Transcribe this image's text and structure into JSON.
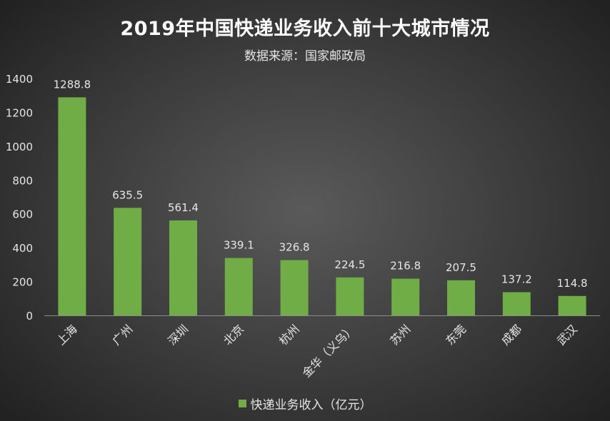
{
  "chart_data": {
    "type": "bar",
    "title": "2019年中国快递业务收入前十大城市情况",
    "subtitle": "数据来源：国家邮政局",
    "categories": [
      "上海",
      "广州",
      "深圳",
      "北京",
      "杭州",
      "金华（义乌）",
      "苏州",
      "东莞",
      "成都",
      "武汉"
    ],
    "series": [
      {
        "name": "快递业务收入（亿元）",
        "values": [
          1288.8,
          635.5,
          561.4,
          339.1,
          326.8,
          224.5,
          216.8,
          207.5,
          137.2,
          114.8
        ],
        "color": "#70ad47"
      }
    ],
    "ylim": [
      0,
      1400
    ],
    "yticks": [
      0,
      200,
      400,
      600,
      800,
      1000,
      1200,
      1400
    ],
    "legend_position": "bottom",
    "grid": false
  },
  "colors": {
    "text": "#e6e6e6",
    "axis": "#8c8c8c"
  }
}
